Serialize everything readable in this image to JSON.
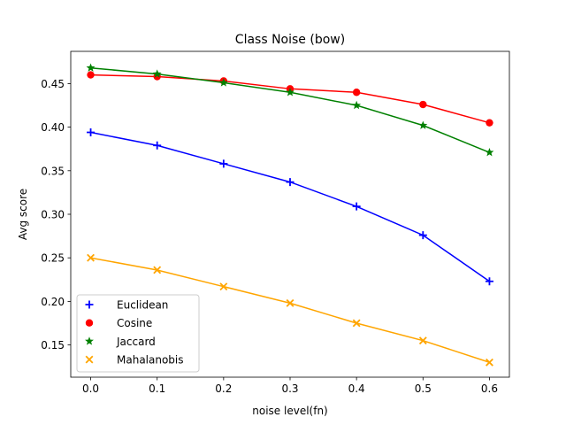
{
  "chart_data": {
    "type": "line",
    "title": "Class Noise (bow)",
    "xlabel": "noise level(fn)",
    "ylabel": "Avg score",
    "x": [
      0.0,
      0.1,
      0.2,
      0.3,
      0.4,
      0.5,
      0.6
    ],
    "x_ticks": [
      "0.0",
      "0.1",
      "0.2",
      "0.3",
      "0.4",
      "0.5",
      "0.6"
    ],
    "y_ticks": [
      "0.15",
      "0.20",
      "0.25",
      "0.30",
      "0.35",
      "0.40",
      "0.45"
    ],
    "xlim": [
      -0.03,
      0.63
    ],
    "ylim": [
      0.113,
      0.487
    ],
    "grid": false,
    "legend_position": "lower-left",
    "series": [
      {
        "name": "Euclidean",
        "color": "#0000ff",
        "marker": "plus",
        "values": [
          0.394,
          0.379,
          0.358,
          0.337,
          0.309,
          0.276,
          0.223
        ]
      },
      {
        "name": "Cosine",
        "color": "#ff0000",
        "marker": "circle",
        "values": [
          0.46,
          0.458,
          0.453,
          0.444,
          0.44,
          0.426,
          0.405
        ]
      },
      {
        "name": "Jaccard",
        "color": "#008000",
        "marker": "star",
        "values": [
          0.468,
          0.461,
          0.451,
          0.44,
          0.425,
          0.402,
          0.371
        ]
      },
      {
        "name": "Mahalanobis",
        "color": "#ffa500",
        "marker": "x",
        "values": [
          0.25,
          0.236,
          0.217,
          0.198,
          0.175,
          0.155,
          0.13
        ]
      }
    ]
  }
}
